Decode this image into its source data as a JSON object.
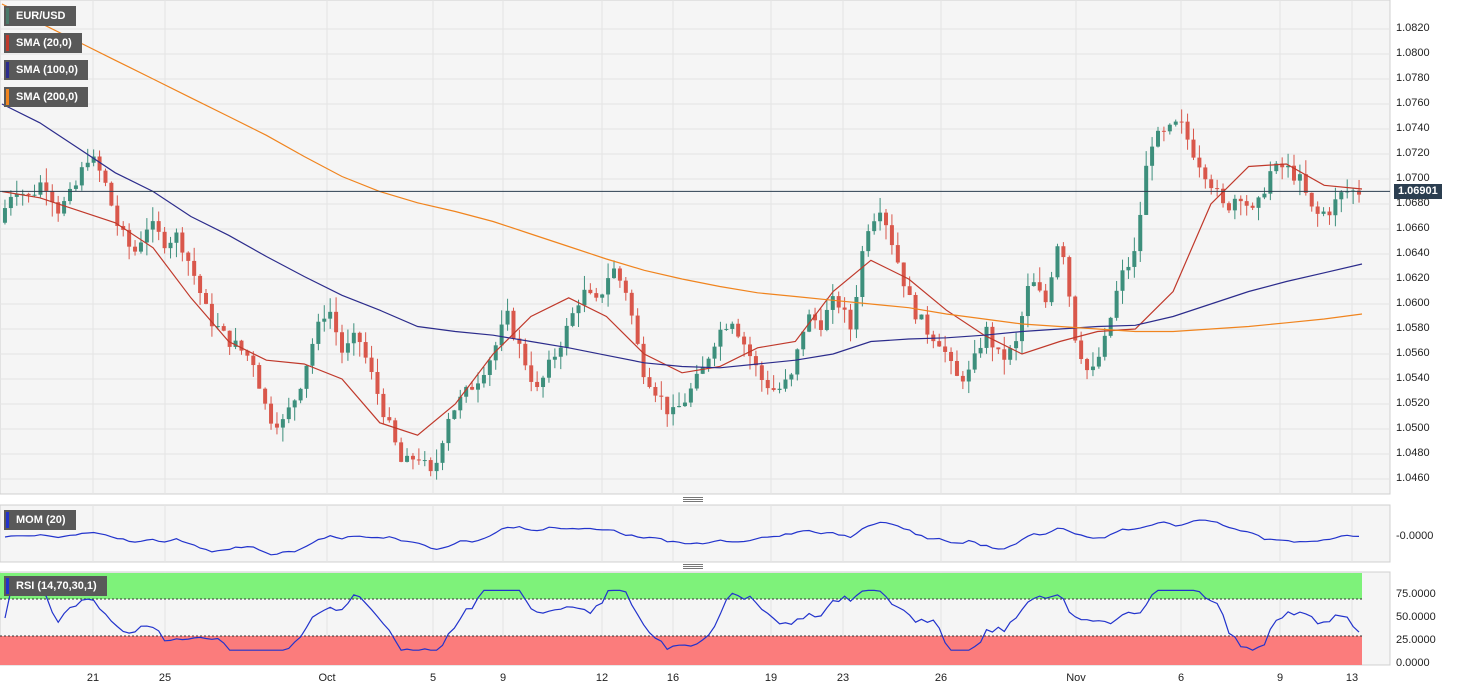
{
  "instrument": {
    "label": "EUR/USD",
    "color": "#4a7a6a"
  },
  "indicators": [
    {
      "label": "SMA (20,0)",
      "color": "#c0392b"
    },
    {
      "label": "SMA (100,0)",
      "color": "#2c2c8c"
    },
    {
      "label": "SMA (200,0)",
      "color": "#f0841e"
    }
  ],
  "last_price": "1.06901",
  "price_axis": [
    "1.0820",
    "1.0800",
    "1.0780",
    "1.0760",
    "1.0740",
    "1.0720",
    "1.0700",
    "1.0680",
    "1.0660",
    "1.0640",
    "1.0620",
    "1.0600",
    "1.0580",
    "1.0560",
    "1.0540",
    "1.0520",
    "1.0500",
    "1.0480",
    "1.0460"
  ],
  "mom_panel": {
    "label": "MOM (20)",
    "color": "#2233cc",
    "axis": [
      "-0.0000"
    ]
  },
  "rsi_panel": {
    "label": "RSI (14,70,30,1)",
    "color": "#2233cc",
    "axis": [
      "75.0000",
      "50.0000",
      "25.0000",
      "0.0000"
    ],
    "overbought_color": "#7ef27a",
    "oversold_color": "#fb7c7c"
  },
  "x_axis": [
    "21",
    "25",
    "Oct",
    "5",
    "9",
    "12",
    "16",
    "19",
    "23",
    "26",
    "Nov",
    "6",
    "9",
    "13"
  ],
  "colors": {
    "up": "#3d8f7c",
    "down": "#d9574b"
  },
  "chart_data": {
    "type": "candlestick",
    "title": "EUR/USD",
    "ylim": [
      1.045,
      1.084
    ],
    "last": 1.06901,
    "series": [
      {
        "name": "SMA (20,0)",
        "values": [
          1.069,
          1.0685,
          1.0675,
          1.0665,
          1.0645,
          1.0605,
          1.057,
          1.0555,
          1.0552,
          1.054,
          1.0505,
          1.0495,
          1.052,
          1.056,
          1.059,
          1.0605,
          1.059,
          1.056,
          1.0545,
          1.055,
          1.0565,
          1.057,
          1.061,
          1.0635,
          1.062,
          1.0595,
          1.0575,
          1.056,
          1.057,
          1.0578,
          1.058,
          1.061,
          1.068,
          1.071,
          1.0712,
          1.0695,
          1.0692
        ]
      },
      {
        "name": "SMA (100,0)",
        "values": [
          1.076,
          1.0745,
          1.0725,
          1.0705,
          1.069,
          1.067,
          1.0655,
          1.0638,
          1.0622,
          1.0607,
          1.0595,
          1.0582,
          1.0578,
          1.0575,
          1.057,
          1.0565,
          1.0559,
          1.0553,
          1.055,
          1.0549,
          1.0552,
          1.0555,
          1.056,
          1.057,
          1.0572,
          1.0573,
          1.0575,
          1.0578,
          1.058,
          1.0582,
          1.0583,
          1.059,
          1.06,
          1.061,
          1.0618,
          1.0625,
          1.0632
        ]
      },
      {
        "name": "SMA (200,0)",
        "values": [
          1.084,
          1.0825,
          1.081,
          1.0795,
          1.078,
          1.0765,
          1.075,
          1.0735,
          1.0718,
          1.0702,
          1.069,
          1.0681,
          1.0674,
          1.0666,
          1.0656,
          1.0646,
          1.0636,
          1.0627,
          1.062,
          1.0614,
          1.0609,
          1.0606,
          1.0603,
          1.06,
          1.0597,
          1.0592,
          1.0588,
          1.0584,
          1.0582,
          1.058,
          1.0578,
          1.0578,
          1.058,
          1.0582,
          1.0585,
          1.0588,
          1.0592
        ]
      }
    ],
    "path_points": [
      1.0665,
      1.0695,
      1.0685,
      1.07,
      1.0675,
      1.069,
      1.072,
      1.07,
      1.066,
      1.064,
      1.0665,
      1.065,
      1.0655,
      1.0625,
      1.059,
      1.0575,
      1.0565,
      1.0555,
      1.051,
      1.0505,
      1.053,
      1.057,
      1.06,
      1.056,
      1.0575,
      1.054,
      1.0505,
      1.047,
      1.048,
      1.046,
      1.051,
      1.0525,
      1.054,
      1.056,
      1.059,
      1.056,
      1.053,
      1.0555,
      1.058,
      1.061,
      1.06,
      1.063,
      1.061,
      1.055,
      1.053,
      1.051,
      1.0525,
      1.0545,
      1.0575,
      1.059,
      1.0565,
      1.054,
      1.053,
      1.054,
      1.059,
      1.0585,
      1.0605,
      1.058,
      1.066,
      1.068,
      1.064,
      1.06,
      1.058,
      1.057,
      1.054,
      1.0545,
      1.058,
      1.0555,
      1.0565,
      1.062,
      1.06,
      1.066,
      1.0575,
      1.054,
      1.057,
      1.062,
      1.064,
      1.073,
      1.0735,
      1.0745,
      1.072,
      1.07,
      1.0675,
      1.069,
      1.067,
      1.0705,
      1.071,
      1.07,
      1.067,
      1.0675,
      1.069,
      1.069
    ]
  }
}
